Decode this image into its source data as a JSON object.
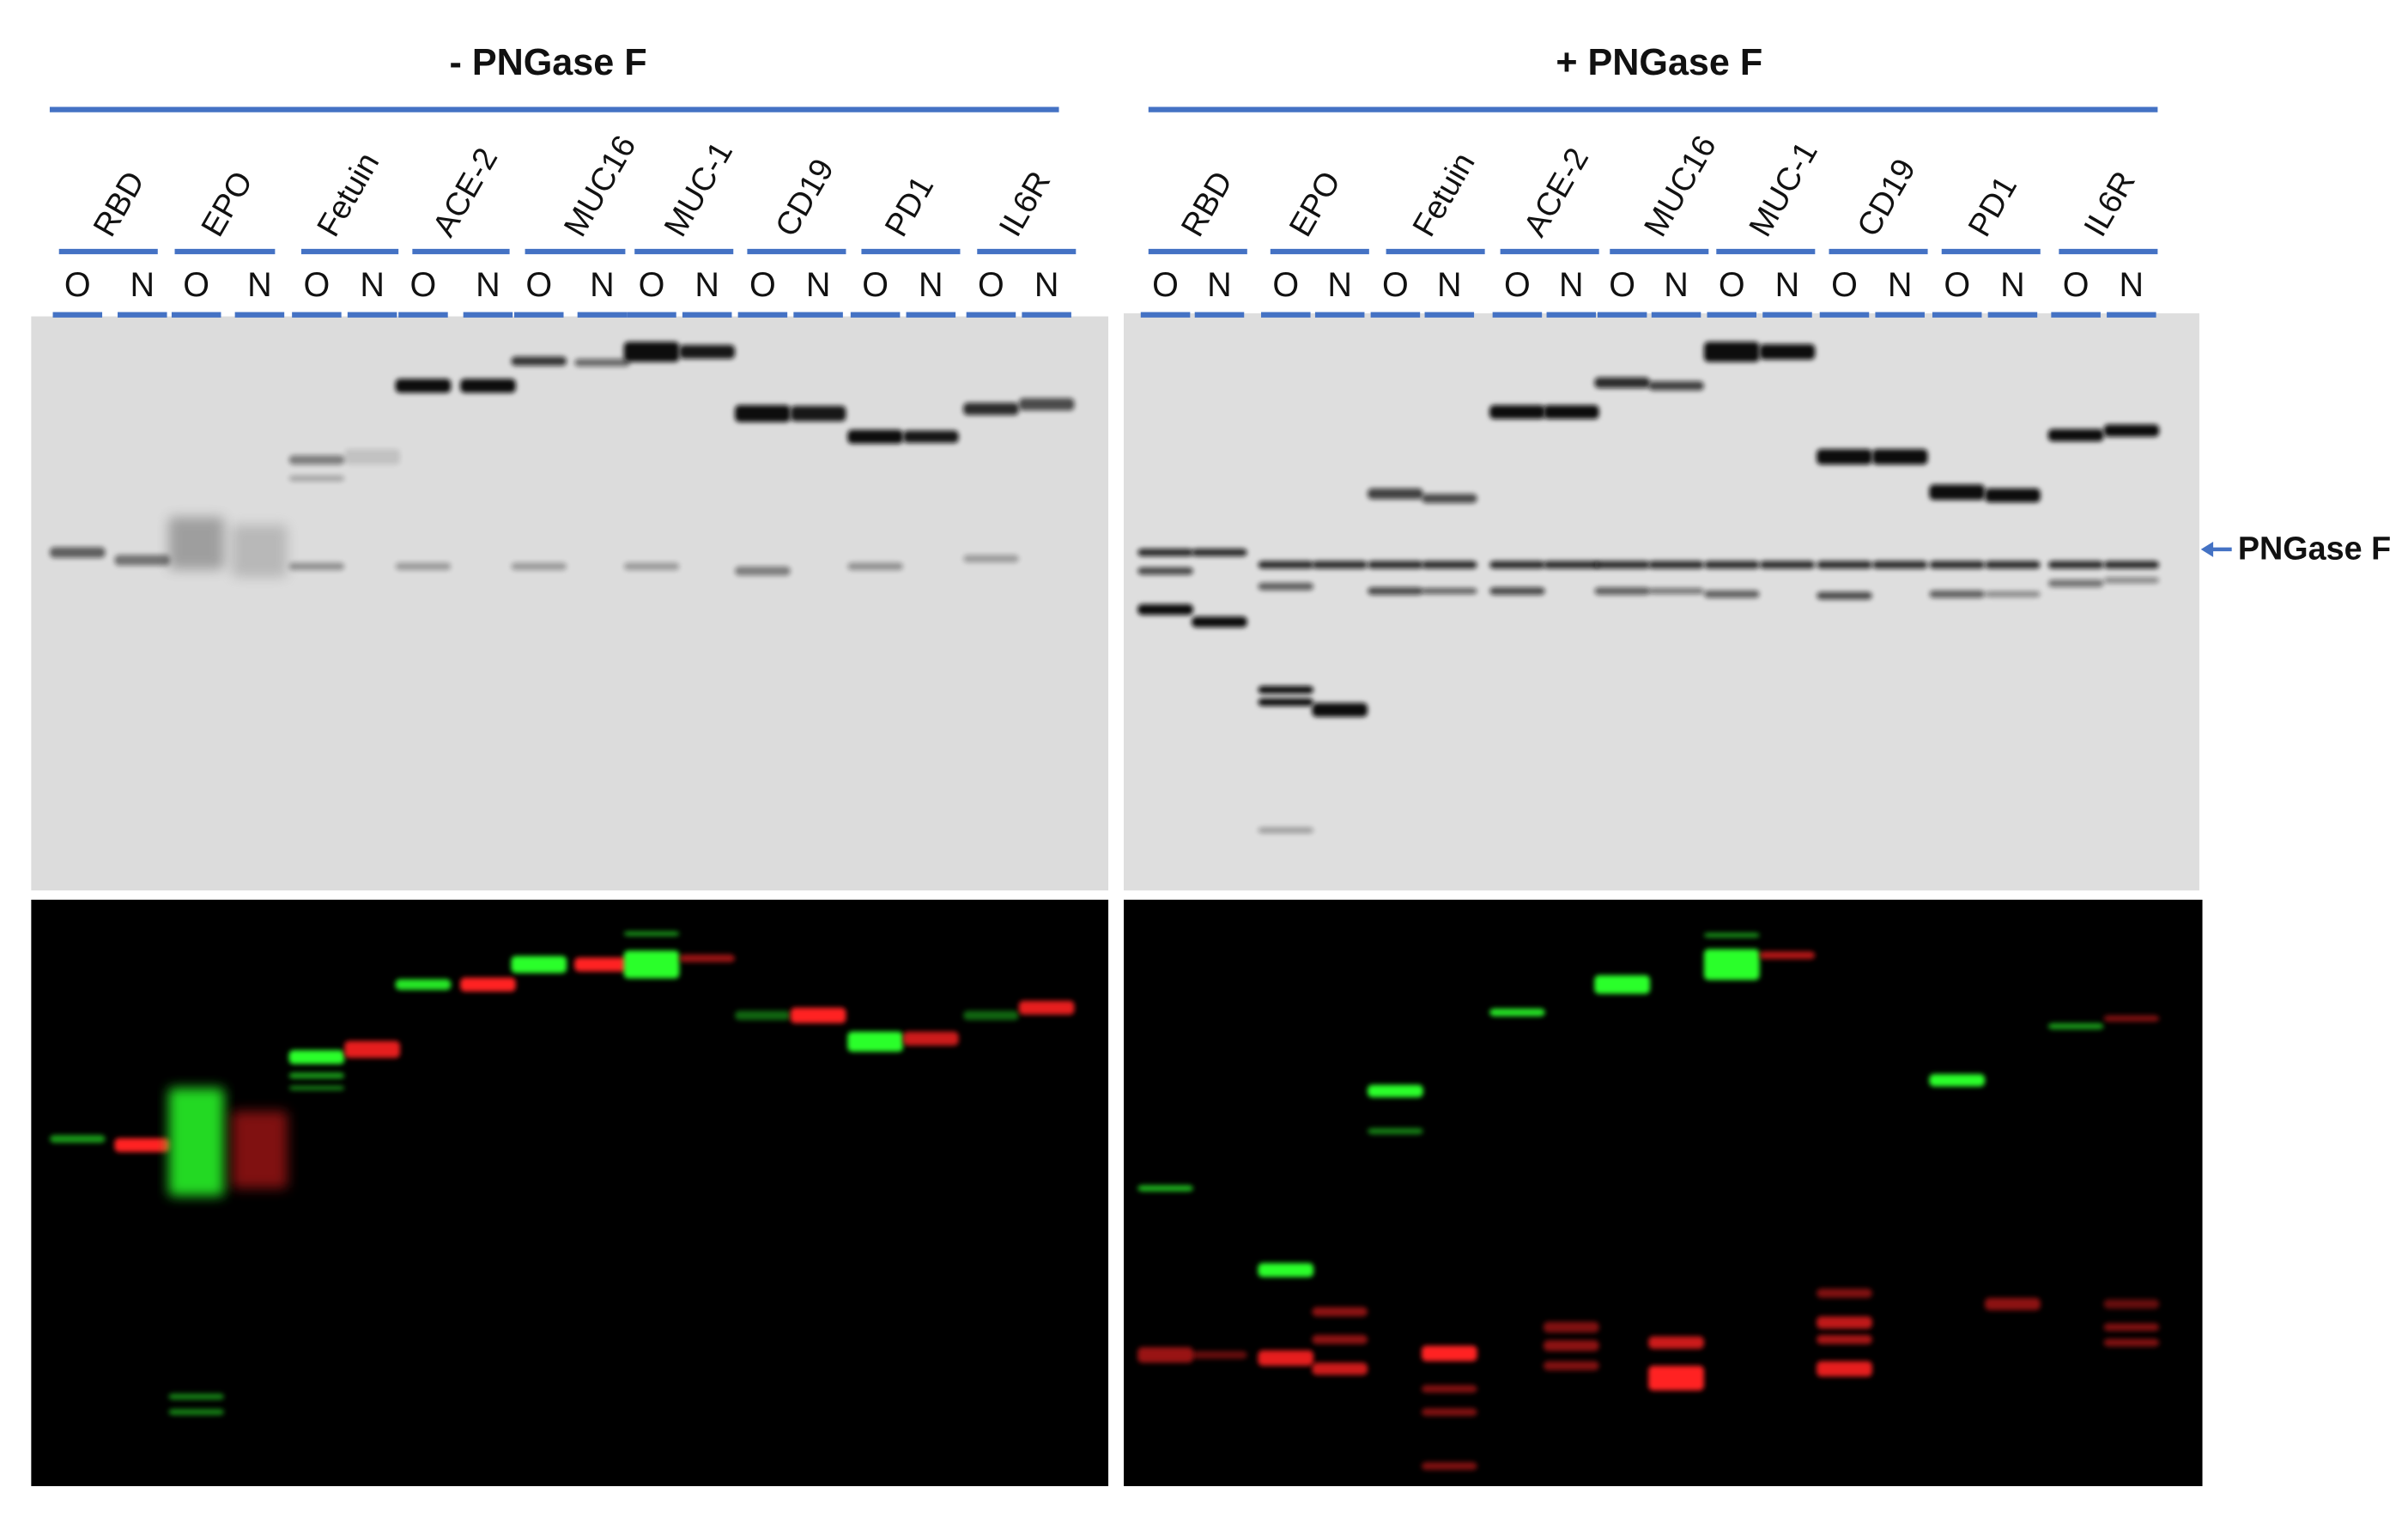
{
  "panels": [
    {
      "title": "- PNGase F",
      "samples": [
        "RBD",
        "EPO",
        "Fetuin",
        "ACE-2",
        "MUC16",
        "MUC-1",
        "CD19",
        "PD1",
        "IL6R"
      ],
      "lanes": [
        "O",
        "N",
        "O",
        "N",
        "O",
        "N",
        "O",
        "N",
        "O",
        "N",
        "O",
        "N",
        "O",
        "N",
        "O",
        "N",
        "O",
        "N"
      ]
    },
    {
      "title": "+ PNGase F",
      "samples": [
        "RBD",
        "EPO",
        "Fetuin",
        "ACE-2",
        "MUC16",
        "MUC-1",
        "CD19",
        "PD1",
        "IL6R"
      ],
      "lanes": [
        "O",
        "N",
        "O",
        "N",
        "O",
        "N",
        "O",
        "N",
        "O",
        "N",
        "O",
        "N",
        "O",
        "N",
        "O",
        "N",
        "O",
        "N"
      ]
    }
  ],
  "annotation": "PNGase F"
}
